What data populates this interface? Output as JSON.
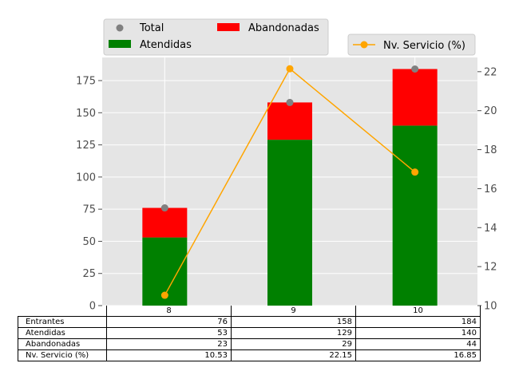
{
  "chart_data": {
    "type": "bar",
    "categories": [
      "8",
      "9",
      "10"
    ],
    "series": [
      {
        "name": "Atendidas",
        "type": "stacked-bar",
        "axis": "left",
        "color": "#008000",
        "values": [
          53,
          129,
          140
        ]
      },
      {
        "name": "Abandonadas",
        "type": "stacked-bar",
        "axis": "left",
        "color": "#ff0000",
        "values": [
          23,
          29,
          44
        ]
      },
      {
        "name": "Total",
        "type": "scatter",
        "axis": "left",
        "color": "#808080",
        "values": [
          76,
          158,
          184
        ]
      },
      {
        "name": "Nv. Servicio (%)",
        "type": "line",
        "axis": "right",
        "color": "#ffa500",
        "values": [
          10.53,
          22.15,
          16.85
        ]
      }
    ],
    "left_axis": {
      "ylim": [
        0,
        193
      ],
      "ticks": [
        "0",
        "25",
        "50",
        "75",
        "100",
        "125",
        "150",
        "175"
      ]
    },
    "right_axis": {
      "ylim": [
        10,
        22.73
      ],
      "ticks": [
        "10",
        "12",
        "14",
        "16",
        "18",
        "20",
        "22"
      ]
    },
    "grid": true,
    "legend_left": {
      "position": "top-left",
      "entries": [
        "Total",
        "Abandonadas",
        "Atendidas"
      ]
    },
    "legend_right": {
      "position": "top-right",
      "entries": [
        "Nv. Servicio (%)"
      ]
    }
  },
  "table": {
    "columns": [
      "8",
      "9",
      "10"
    ],
    "rows": [
      {
        "label": "Entrantes",
        "values": [
          "76",
          "158",
          "184"
        ]
      },
      {
        "label": "Atendidas",
        "values": [
          "53",
          "129",
          "140"
        ]
      },
      {
        "label": "Abandonadas",
        "values": [
          "23",
          "29",
          "44"
        ]
      },
      {
        "label": "Nv. Servicio (%)",
        "values": [
          "10.53",
          "22.15",
          "16.85"
        ]
      }
    ]
  }
}
